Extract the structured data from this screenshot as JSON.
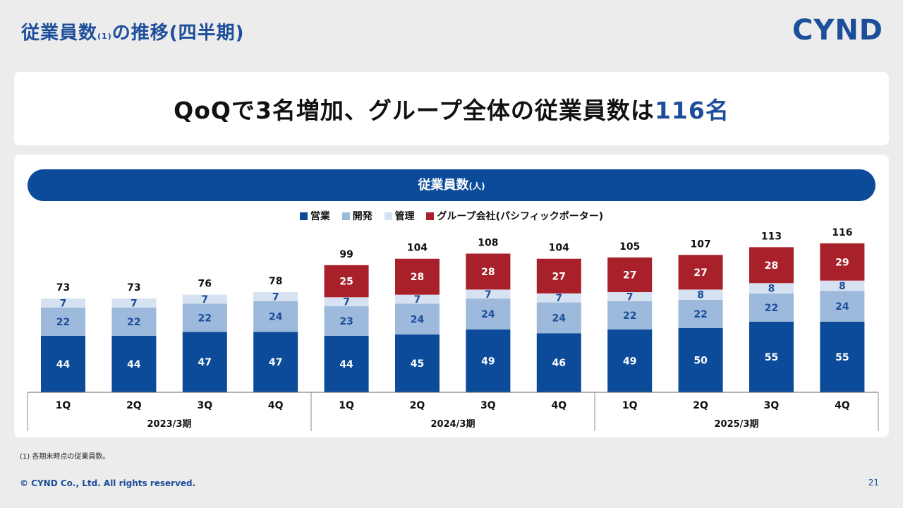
{
  "header": {
    "title_main": "従業員数",
    "title_note": "(1)",
    "title_rest": "の推移(四半期)",
    "logo": "CYND"
  },
  "headline": {
    "text_before": "QoQで3名増加、グループ全体の従業員数は",
    "accent": "116名"
  },
  "chart_data": {
    "type": "bar",
    "stacked": true,
    "title": "従業員数",
    "title_unit": "(人)",
    "categories": [
      "1Q",
      "2Q",
      "3Q",
      "4Q",
      "1Q",
      "2Q",
      "3Q",
      "4Q",
      "1Q",
      "2Q",
      "3Q",
      "4Q"
    ],
    "groups": [
      {
        "label": "2023/3期",
        "span": 4
      },
      {
        "label": "2024/3期",
        "span": 4
      },
      {
        "label": "2025/3期",
        "span": 4
      }
    ],
    "series": [
      {
        "name": "営業",
        "color": "#0b4b9a",
        "label_color": "#ffffff",
        "values": [
          44,
          44,
          47,
          47,
          44,
          45,
          49,
          46,
          49,
          50,
          55,
          55
        ]
      },
      {
        "name": "開発",
        "color": "#9db9db",
        "label_color": "#1c4e9a",
        "values": [
          22,
          22,
          22,
          24,
          23,
          24,
          24,
          24,
          22,
          22,
          22,
          24
        ]
      },
      {
        "name": "管理",
        "color": "#d6e2f1",
        "label_color": "#1c4e9a",
        "values": [
          7,
          7,
          7,
          7,
          7,
          7,
          7,
          7,
          7,
          8,
          8,
          8
        ]
      },
      {
        "name": "グループ会社(パシフィックポーター)",
        "color": "#a8202a",
        "label_color": "#ffffff",
        "values": [
          null,
          null,
          null,
          null,
          25,
          28,
          28,
          27,
          27,
          27,
          28,
          29
        ]
      }
    ],
    "totals": [
      73,
      73,
      76,
      78,
      99,
      104,
      108,
      104,
      105,
      107,
      113,
      116
    ],
    "ylim": [
      0,
      120
    ],
    "grid": false,
    "legend_position": "top-center"
  },
  "footer": {
    "footnote": "(1) 各期末時点の従業員数。",
    "copyright": "© CYND Co., Ltd. All rights reserved.",
    "page": "21"
  }
}
